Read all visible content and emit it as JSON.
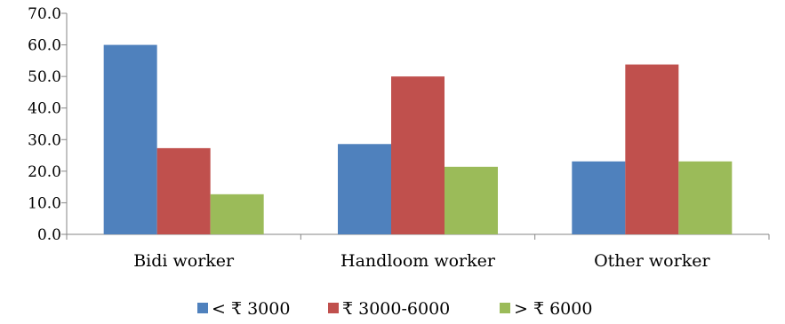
{
  "chart_data": {
    "type": "bar",
    "categories": [
      "Bidi worker",
      "Handloom worker",
      "Other worker"
    ],
    "series": [
      {
        "name": "< ₹ 3000",
        "color": "#4F81BD",
        "values": [
          60.0,
          28.6,
          23.1
        ]
      },
      {
        "name": "₹ 3000-6000",
        "color": "#C0504D",
        "values": [
          27.3,
          50.0,
          53.8
        ]
      },
      {
        "name": "> ₹ 6000",
        "color": "#9BBB59",
        "values": [
          12.7,
          21.4,
          23.1
        ]
      }
    ],
    "ylim": [
      0,
      70
    ],
    "yticks": [
      "0.0",
      "10.0",
      "20.0",
      "30.0",
      "40.0",
      "50.0",
      "60.0",
      "70.0"
    ],
    "grid": false,
    "legend_position": "bottom"
  }
}
